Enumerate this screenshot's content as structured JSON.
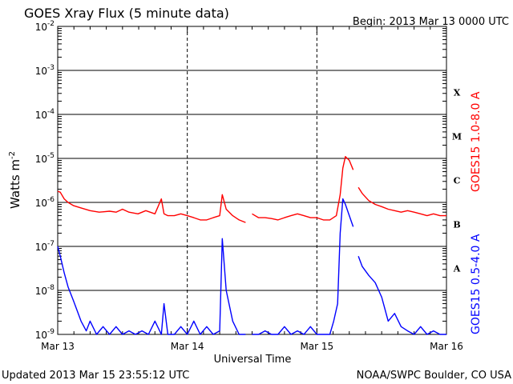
{
  "header": {
    "title": "GOES Xray Flux (5 minute data)",
    "begin": "Begin:  2013 Mar 13 0000 UTC"
  },
  "footer": {
    "updated": "Updated 2013 Mar 15 23:55:12 UTC",
    "credit": "NOAA/SWPC Boulder, CO USA"
  },
  "chart_data": {
    "type": "line",
    "title": "GOES Xray Flux (5 minute data)",
    "xlabel": "Universal Time",
    "ylabel": "Watts m-2",
    "ylabel_unit_base": "Watts m",
    "ylabel_unit_exp": "-2",
    "x_unit": "days since 2013 Mar 13 0000 UTC",
    "xlim": [
      0,
      3
    ],
    "x_ticks": [
      {
        "x": 0,
        "label": "Mar 13"
      },
      {
        "x": 1,
        "label": "Mar 14"
      },
      {
        "x": 2,
        "label": "Mar 15"
      },
      {
        "x": 3,
        "label": "Mar 16"
      }
    ],
    "y_scale": "log",
    "ylim": [
      1e-09,
      0.01
    ],
    "y_ticks": [
      {
        "exp": -2,
        "base": "10",
        "sup": "-2"
      },
      {
        "exp": -3,
        "base": "10",
        "sup": "-3"
      },
      {
        "exp": -4,
        "base": "10",
        "sup": "-4"
      },
      {
        "exp": -5,
        "base": "10",
        "sup": "-5"
      },
      {
        "exp": -6,
        "base": "10",
        "sup": "-6"
      },
      {
        "exp": -7,
        "base": "10",
        "sup": "-7"
      },
      {
        "exp": -8,
        "base": "10",
        "sup": "-8"
      },
      {
        "exp": -9,
        "base": "10",
        "sup": "-9"
      }
    ],
    "flare_classes": [
      {
        "label": "X",
        "exp": -3.5
      },
      {
        "label": "M",
        "exp": -4.5
      },
      {
        "label": "C",
        "exp": -5.5
      },
      {
        "label": "B",
        "exp": -6.5
      },
      {
        "label": "A",
        "exp": -7.5
      }
    ],
    "grid": true,
    "series": [
      {
        "name": "GOES15 1.0-8.0 A",
        "color": "#ff0000",
        "segments": [
          {
            "x": [
              0,
              0.02,
              0.05,
              0.08,
              0.12,
              0.18,
              0.25,
              0.32,
              0.4,
              0.45,
              0.5,
              0.55,
              0.62,
              0.68,
              0.75,
              0.8,
              0.82,
              0.85,
              0.9,
              0.95,
              1.0,
              1.05,
              1.1,
              1.15,
              1.2,
              1.25,
              1.27,
              1.3,
              1.35,
              1.4,
              1.45
            ],
            "y": [
              1.8e-06,
              1.7e-06,
              1.2e-06,
              1e-06,
              8.5e-07,
              7.5e-07,
              6.5e-07,
              6e-07,
              6.3e-07,
              6e-07,
              7e-07,
              6e-07,
              5.5e-07,
              6.5e-07,
              5.5e-07,
              1.2e-06,
              5.5e-07,
              5e-07,
              5e-07,
              5.5e-07,
              5e-07,
              4.5e-07,
              4e-07,
              4e-07,
              4.5e-07,
              5e-07,
              1.5e-06,
              7e-07,
              5e-07,
              4e-07,
              3.5e-07
            ]
          },
          {
            "x": [
              1.5,
              1.55,
              1.6,
              1.65,
              1.7,
              1.75,
              1.8,
              1.85,
              1.9,
              1.95,
              2.0,
              2.05,
              2.1,
              2.15,
              2.18,
              2.2,
              2.22,
              2.25,
              2.28
            ],
            "y": [
              5.5e-07,
              4.5e-07,
              4.5e-07,
              4.3e-07,
              4e-07,
              4.5e-07,
              5e-07,
              5.5e-07,
              5e-07,
              4.5e-07,
              4.5e-07,
              4e-07,
              4e-07,
              5e-07,
              1.5e-06,
              6e-06,
              1.1e-05,
              9e-06,
              5.5e-06
            ]
          },
          {
            "x": [
              2.32,
              2.35,
              2.4,
              2.45,
              2.5,
              2.55,
              2.6,
              2.65,
              2.7,
              2.75,
              2.8,
              2.85,
              2.9,
              2.95,
              3.0
            ],
            "y": [
              2.2e-06,
              1.6e-06,
              1.1e-06,
              9e-07,
              8e-07,
              7e-07,
              6.5e-07,
              6e-07,
              6.5e-07,
              6e-07,
              5.5e-07,
              5e-07,
              5.5e-07,
              5e-07,
              5e-07
            ]
          }
        ]
      },
      {
        "name": "GOES15 0.5-4.0 A",
        "color": "#0000ff",
        "segments": [
          {
            "x": [
              0,
              0.02,
              0.05,
              0.08,
              0.12,
              0.18,
              0.22,
              0.25,
              0.3,
              0.35,
              0.4,
              0.45,
              0.5,
              0.55,
              0.6,
              0.65,
              0.7,
              0.75,
              0.8,
              0.82,
              0.85,
              0.9,
              0.95,
              1.0,
              1.05,
              1.1,
              1.15,
              1.2,
              1.25,
              1.27,
              1.3,
              1.35,
              1.4,
              1.45
            ],
            "y": [
              1e-07,
              6e-08,
              2.5e-08,
              1.2e-08,
              6e-09,
              2e-09,
              1.2e-09,
              2e-09,
              1e-09,
              1.5e-09,
              1e-09,
              1.5e-09,
              1e-09,
              1.2e-09,
              1e-09,
              1.2e-09,
              1e-09,
              2e-09,
              1e-09,
              5e-09,
              1e-09,
              1e-09,
              1.5e-09,
              1e-09,
              2e-09,
              1e-09,
              1.5e-09,
              1e-09,
              1.2e-09,
              1.5e-07,
              1e-08,
              2e-09,
              1e-09,
              1e-09
            ]
          },
          {
            "x": [
              1.5,
              1.55,
              1.6,
              1.65,
              1.7,
              1.75,
              1.8,
              1.85,
              1.9,
              1.95,
              2.0,
              2.05,
              2.1,
              2.13,
              2.16,
              2.18,
              2.2,
              2.22,
              2.25,
              2.28
            ],
            "y": [
              1e-09,
              1e-09,
              1.2e-09,
              1e-09,
              1e-09,
              1.5e-09,
              1e-09,
              1.2e-09,
              1e-09,
              1.5e-09,
              1e-09,
              1e-09,
              1e-09,
              2e-09,
              5e-09,
              2e-07,
              1.2e-06,
              9e-07,
              5e-07,
              2.8e-07
            ]
          },
          {
            "x": [
              2.32,
              2.35,
              2.4,
              2.45,
              2.5,
              2.55,
              2.6,
              2.65,
              2.7,
              2.75,
              2.8,
              2.85,
              2.9,
              2.95,
              3.0
            ],
            "y": [
              6e-08,
              3.5e-08,
              2.2e-08,
              1.5e-08,
              7e-09,
              2e-09,
              3e-09,
              1.5e-09,
              1.2e-09,
              1e-09,
              1.5e-09,
              1e-09,
              1.2e-09,
              1e-09,
              1e-09
            ]
          }
        ]
      }
    ]
  }
}
